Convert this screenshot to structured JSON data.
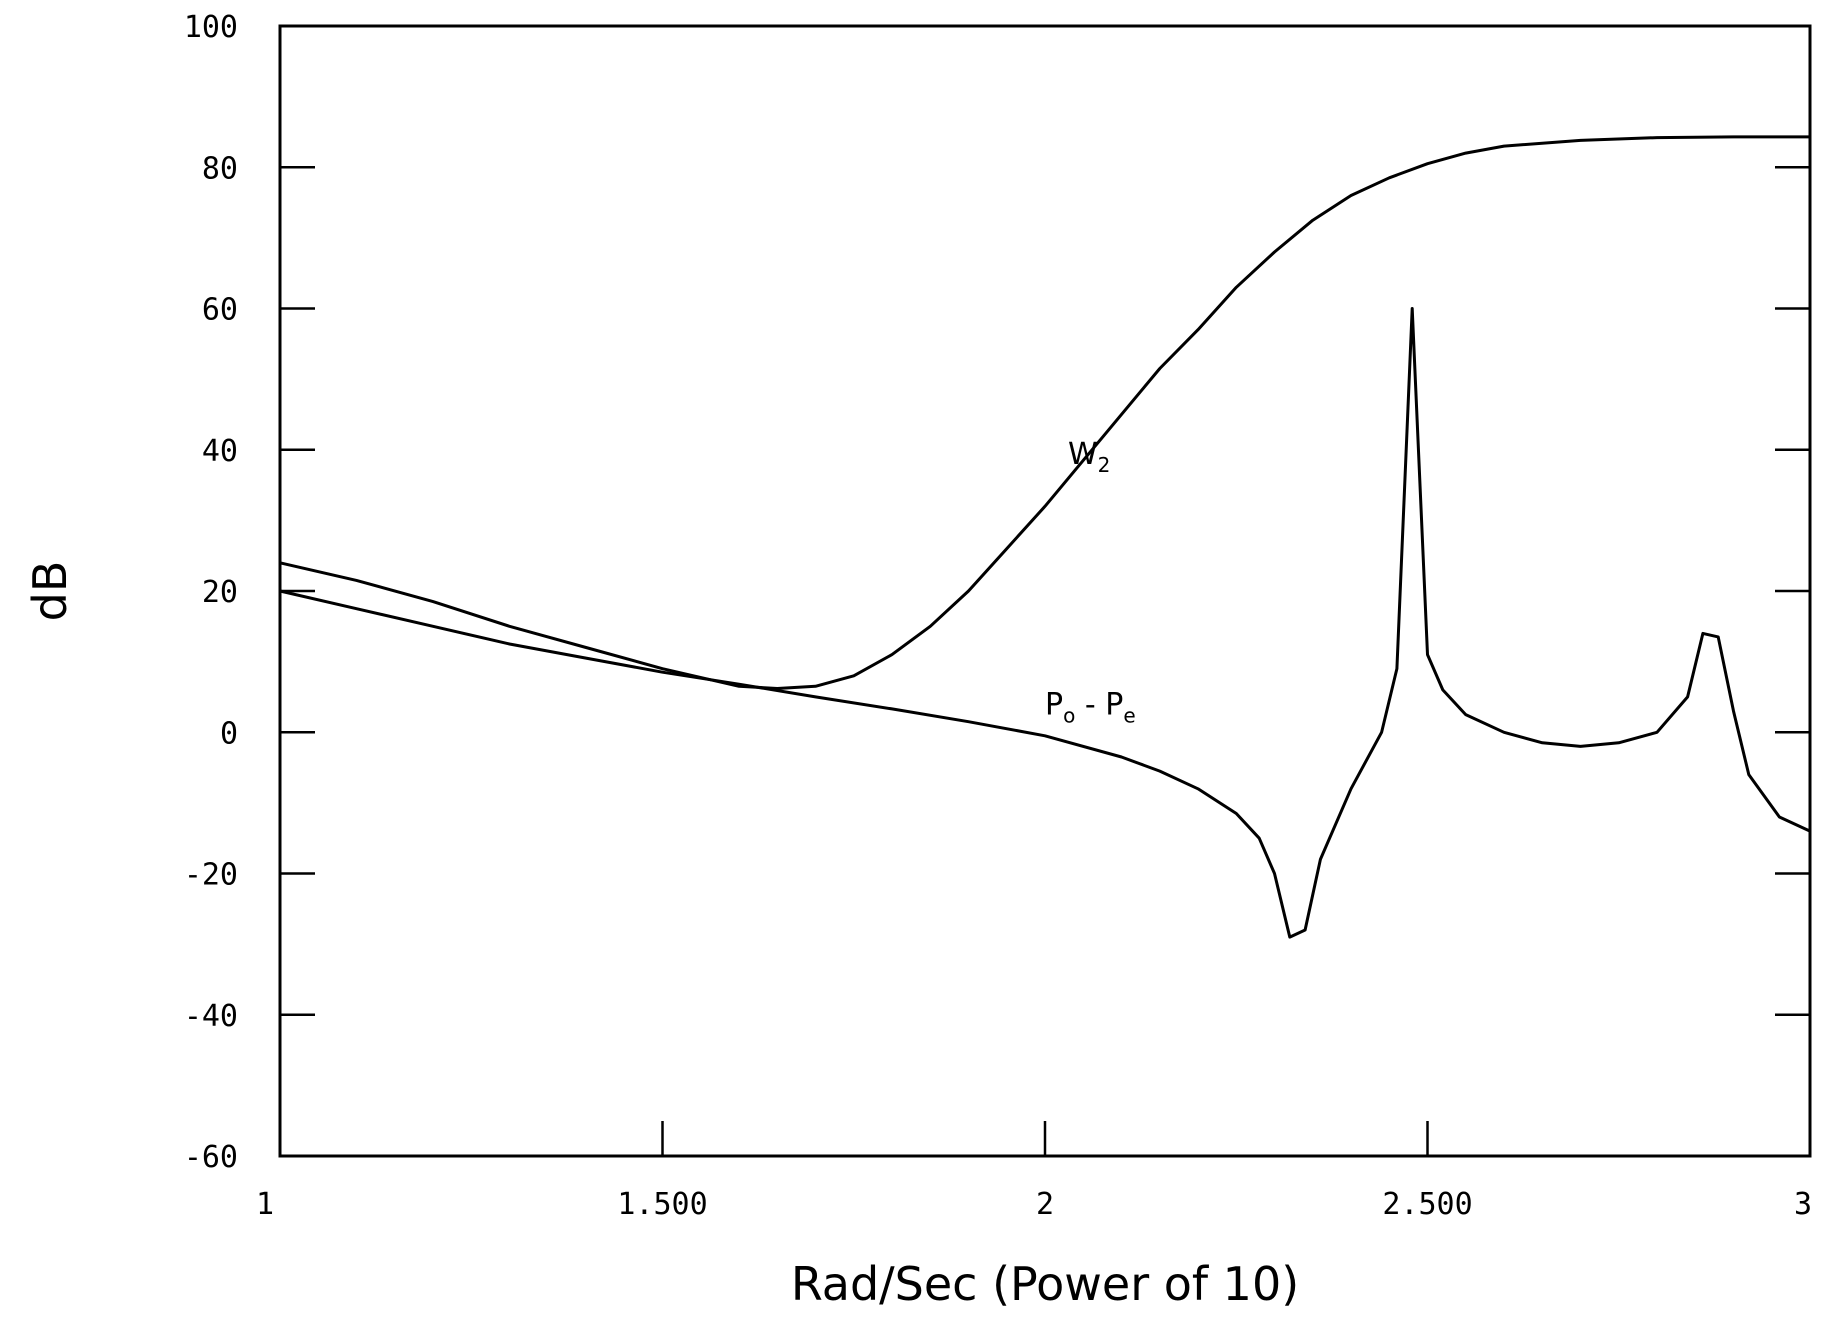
{
  "chart_data": {
    "type": "line",
    "title": "",
    "xlabel": "Rad/Sec (Power of 10)",
    "ylabel": "dB",
    "xlim": [
      1,
      3
    ],
    "ylim": [
      -60,
      100
    ],
    "x_ticks": [
      1,
      1.5,
      2,
      2.5,
      3
    ],
    "x_tick_labels": [
      "1",
      "1.500",
      "2",
      "2.500",
      "3"
    ],
    "y_ticks": [
      -60,
      -40,
      -20,
      0,
      20,
      40,
      60,
      80,
      100
    ],
    "y_tick_labels": [
      "-60",
      "-40",
      "-20",
      "0",
      "20",
      "40",
      "60",
      "80",
      "100"
    ],
    "grid": false,
    "legend": "none",
    "series": [
      {
        "label_main": "W",
        "label_sub": "2",
        "label_at": [
          2.03,
          38
        ],
        "points": [
          [
            1.0,
            24
          ],
          [
            1.1,
            21.5
          ],
          [
            1.2,
            18.5
          ],
          [
            1.3,
            15
          ],
          [
            1.4,
            12
          ],
          [
            1.5,
            9
          ],
          [
            1.6,
            6.5
          ],
          [
            1.65,
            6.2
          ],
          [
            1.7,
            6.5
          ],
          [
            1.75,
            8
          ],
          [
            1.8,
            11
          ],
          [
            1.85,
            15
          ],
          [
            1.9,
            20
          ],
          [
            1.95,
            26
          ],
          [
            2.0,
            32
          ],
          [
            2.05,
            38.5
          ],
          [
            2.1,
            45
          ],
          [
            2.15,
            51.5
          ],
          [
            2.2,
            57
          ],
          [
            2.25,
            63
          ],
          [
            2.3,
            68
          ],
          [
            2.35,
            72.5
          ],
          [
            2.4,
            76
          ],
          [
            2.45,
            78.5
          ],
          [
            2.5,
            80.5
          ],
          [
            2.55,
            82
          ],
          [
            2.6,
            83
          ],
          [
            2.7,
            83.8
          ],
          [
            2.8,
            84.2
          ],
          [
            2.9,
            84.3
          ],
          [
            3.0,
            84.3
          ]
        ]
      },
      {
        "label_main": "P",
        "label_sub1": "o",
        "label_mid": " - P",
        "label_sub2": "e",
        "label_at": [
          2.0,
          2.5
        ],
        "points": [
          [
            1.0,
            20
          ],
          [
            1.1,
            17.5
          ],
          [
            1.2,
            15
          ],
          [
            1.3,
            12.5
          ],
          [
            1.4,
            10.5
          ],
          [
            1.5,
            8.5
          ],
          [
            1.6,
            6.8
          ],
          [
            1.7,
            5
          ],
          [
            1.8,
            3.3
          ],
          [
            1.9,
            1.5
          ],
          [
            2.0,
            -0.5
          ],
          [
            2.1,
            -3.5
          ],
          [
            2.15,
            -5.5
          ],
          [
            2.2,
            -8
          ],
          [
            2.25,
            -11.5
          ],
          [
            2.28,
            -15
          ],
          [
            2.3,
            -20
          ],
          [
            2.32,
            -29
          ],
          [
            2.34,
            -28
          ],
          [
            2.36,
            -18
          ],
          [
            2.4,
            -8
          ],
          [
            2.44,
            0
          ],
          [
            2.46,
            9
          ],
          [
            2.48,
            60
          ],
          [
            2.5,
            11
          ],
          [
            2.52,
            6
          ],
          [
            2.55,
            2.5
          ],
          [
            2.6,
            0
          ],
          [
            2.65,
            -1.5
          ],
          [
            2.7,
            -2
          ],
          [
            2.75,
            -1.5
          ],
          [
            2.8,
            0
          ],
          [
            2.84,
            5
          ],
          [
            2.86,
            14
          ],
          [
            2.88,
            13.5
          ],
          [
            2.9,
            3
          ],
          [
            2.92,
            -6
          ],
          [
            2.96,
            -12
          ],
          [
            3.0,
            -14
          ]
        ]
      }
    ]
  }
}
